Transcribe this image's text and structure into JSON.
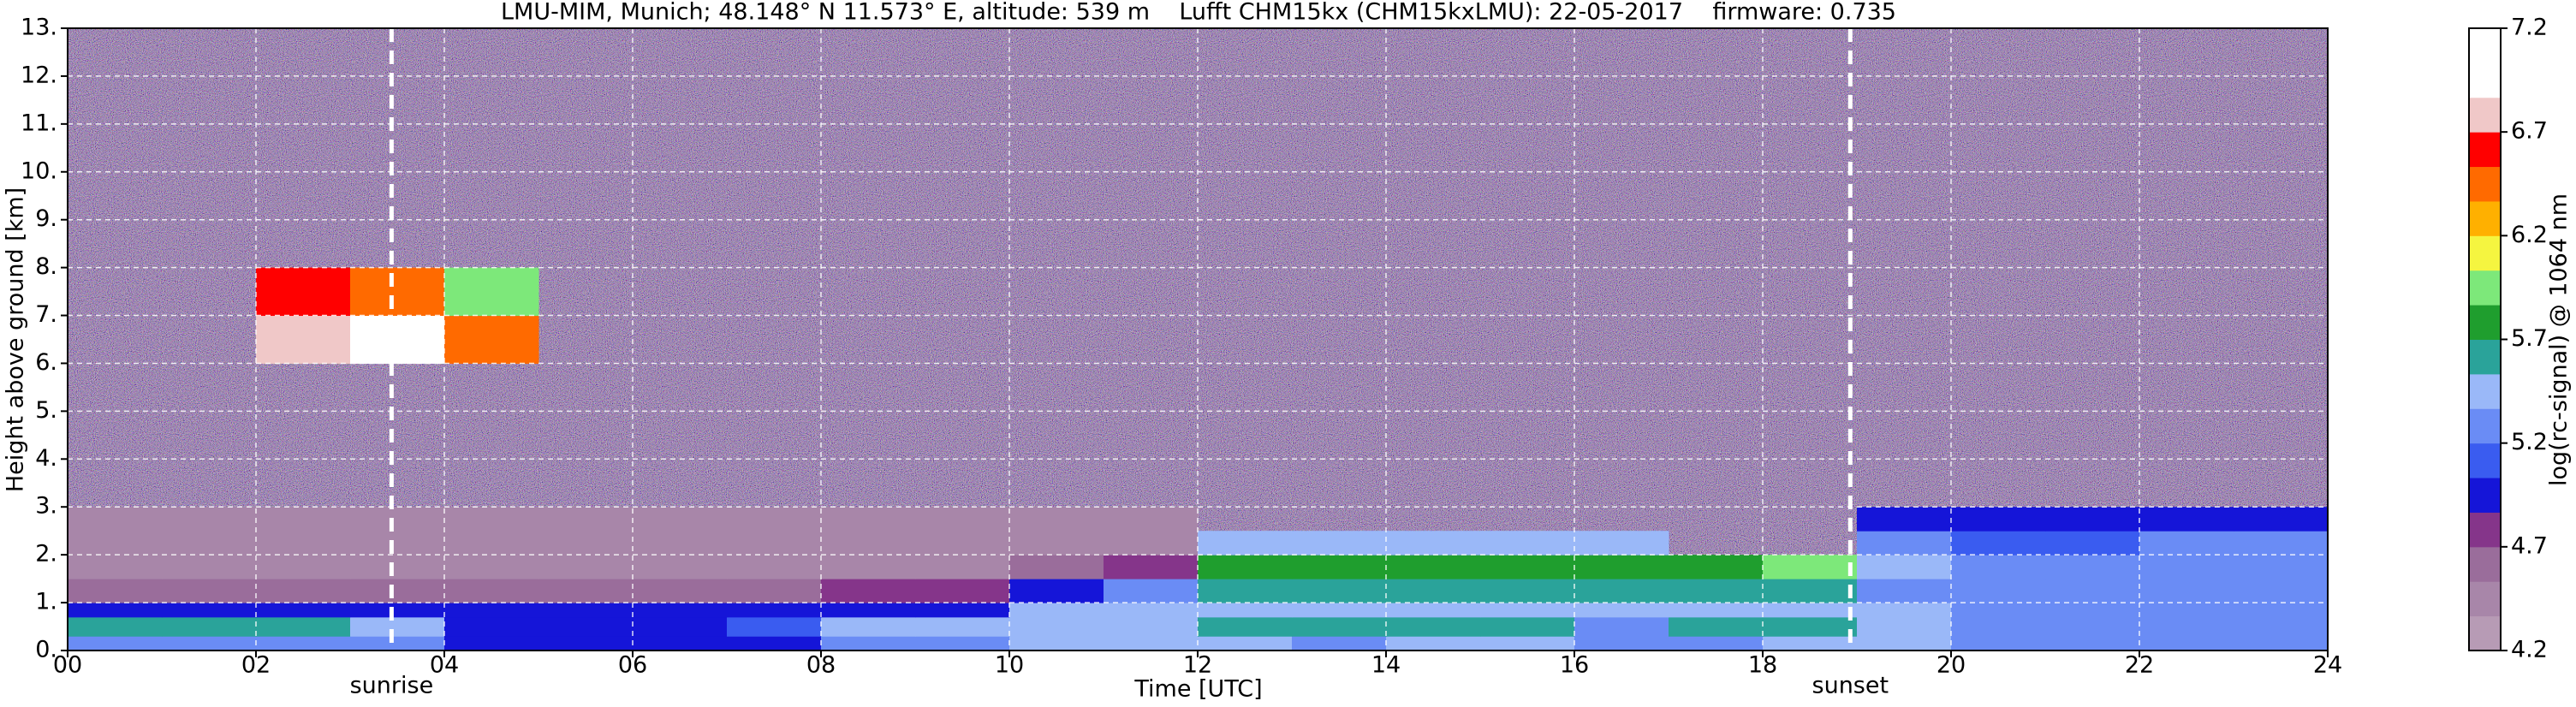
{
  "chart_data": {
    "type": "heatmap",
    "title": "LMU-MIM, Munich; 48.148° N 11.573° E, altitude: 539 m    Lufft CHM15kx (CHM15kxLMU): 22-05-2017    firmware: 0.735",
    "xlabel": "Time [UTC]",
    "ylabel": "Height above ground [km]",
    "xlim": [
      0,
      24
    ],
    "ylim": [
      0,
      13
    ],
    "xticks": [
      {
        "value": 0,
        "label": "00"
      },
      {
        "value": 2,
        "label": "02"
      },
      {
        "value": 4,
        "label": "04"
      },
      {
        "value": 6,
        "label": "06"
      },
      {
        "value": 8,
        "label": "08"
      },
      10,
      12,
      14,
      16,
      18,
      20,
      22,
      24
    ],
    "yticks": [
      {
        "value": 0,
        "label": "0."
      },
      {
        "value": 1,
        "label": "1."
      },
      {
        "value": 2,
        "label": "2."
      },
      {
        "value": 3,
        "label": "3."
      },
      {
        "value": 4,
        "label": "4."
      },
      {
        "value": 5,
        "label": "5."
      },
      {
        "value": 6,
        "label": "6."
      },
      {
        "value": 7,
        "label": "7."
      },
      {
        "value": 8,
        "label": "8."
      },
      {
        "value": 9,
        "label": "9."
      },
      {
        "value": 10,
        "label": "10."
      },
      {
        "value": 11,
        "label": "11."
      },
      {
        "value": 12,
        "label": "12."
      },
      {
        "value": 13,
        "label": "13."
      }
    ],
    "grid": true,
    "x_edges": [
      0,
      1,
      2,
      3,
      4,
      5,
      6,
      7,
      8,
      9,
      10,
      11,
      12,
      13,
      14,
      15,
      16,
      17,
      18,
      19,
      20,
      21,
      22,
      23,
      24
    ],
    "y_edges": [
      0,
      0.3,
      0.7,
      1,
      1.5,
      2,
      2.5,
      3,
      6,
      7,
      8,
      13
    ],
    "z": [
      [
        5.3,
        5.3,
        5.3,
        5.3,
        5.0,
        5.0,
        5.0,
        5.0,
        5.3,
        5.3,
        5.4,
        5.4,
        5.4,
        5.3,
        5.4,
        5.4,
        5.3,
        5.3,
        5.4,
        5.4,
        5.3,
        5.3,
        5.3,
        5.3
      ],
      [
        5.6,
        5.6,
        5.6,
        5.5,
        5.0,
        5.0,
        5.0,
        5.1,
        5.4,
        5.4,
        5.4,
        5.4,
        5.6,
        5.6,
        5.6,
        5.6,
        5.3,
        5.6,
        5.6,
        5.4,
        5.3,
        5.3,
        5.3,
        5.3
      ],
      [
        4.9,
        4.9,
        4.9,
        4.9,
        4.9,
        4.9,
        4.9,
        4.9,
        4.9,
        5.0,
        5.5,
        5.5,
        5.5,
        5.5,
        5.5,
        5.5,
        5.5,
        5.5,
        5.5,
        5.4,
        5.3,
        5.3,
        5.3,
        5.3
      ],
      [
        4.6,
        4.6,
        4.6,
        4.6,
        4.6,
        4.6,
        4.6,
        4.6,
        4.7,
        4.8,
        4.9,
        5.3,
        5.6,
        5.6,
        5.6,
        5.6,
        5.6,
        5.6,
        5.6,
        5.3,
        5.2,
        5.2,
        5.2,
        5.2
      ],
      [
        4.5,
        4.5,
        4.5,
        4.5,
        4.5,
        4.5,
        4.5,
        4.5,
        4.5,
        4.5,
        4.6,
        4.8,
        5.8,
        5.8,
        5.8,
        5.7,
        5.7,
        5.8,
        5.9,
        5.5,
        5.3,
        5.3,
        5.3,
        5.3
      ],
      [
        4.5,
        4.5,
        4.5,
        4.5,
        4.5,
        4.5,
        4.5,
        4.5,
        4.5,
        4.5,
        4.5,
        4.5,
        5.4,
        5.5,
        5.4,
        5.4,
        5.4,
        null,
        null,
        5.2,
        5.1,
        5.1,
        5.2,
        5.2
      ],
      [
        4.4,
        4.4,
        4.4,
        4.4,
        4.4,
        4.4,
        4.4,
        4.4,
        4.4,
        4.4,
        4.4,
        4.4,
        null,
        null,
        null,
        null,
        null,
        null,
        null,
        4.9,
        4.9,
        4.9,
        4.9,
        4.9
      ],
      [
        null,
        null,
        null,
        null,
        null,
        null,
        null,
        null,
        null,
        null,
        null,
        null,
        null,
        null,
        null,
        null,
        null,
        null,
        null,
        null,
        null,
        null,
        null,
        null
      ],
      [
        null,
        null,
        6.8,
        6.9,
        6.4,
        null,
        null,
        null,
        null,
        null,
        null,
        null,
        null,
        null,
        null,
        null,
        null,
        null,
        null,
        null,
        null,
        null,
        null,
        null
      ],
      [
        null,
        null,
        6.6,
        6.5,
        6.0,
        null,
        null,
        null,
        null,
        null,
        null,
        null,
        null,
        null,
        null,
        null,
        null,
        null,
        null,
        null,
        null,
        null,
        null,
        null
      ],
      [
        null,
        null,
        null,
        null,
        null,
        null,
        null,
        null,
        null,
        null,
        null,
        null,
        null,
        null,
        null,
        null,
        null,
        null,
        null,
        null,
        null,
        null,
        null,
        null
      ]
    ],
    "colorbar": {
      "label": "log(rc-signal) @ 1064 nm",
      "clim": [
        4.2,
        7.2
      ],
      "ticks": [
        4.2,
        4.7,
        5.2,
        5.7,
        6.2,
        6.7,
        7.2
      ],
      "colors": [
        "#b79bb5",
        "#a886a9",
        "#9a6d9b",
        "#85358a",
        "#1515d8",
        "#3a5cf0",
        "#6a8cf5",
        "#9ab8f8",
        "#2aa39a",
        "#1f9e2e",
        "#7de87a",
        "#f5f540",
        "#ffb000",
        "#ff6a00",
        "#ff0000",
        "#f0c8c8",
        "#ffffff",
        "#ffffff"
      ]
    },
    "annotations": [
      {
        "text": "sunrise",
        "x": 3.44
      },
      {
        "text": "sunset",
        "x": 18.93
      }
    ]
  }
}
